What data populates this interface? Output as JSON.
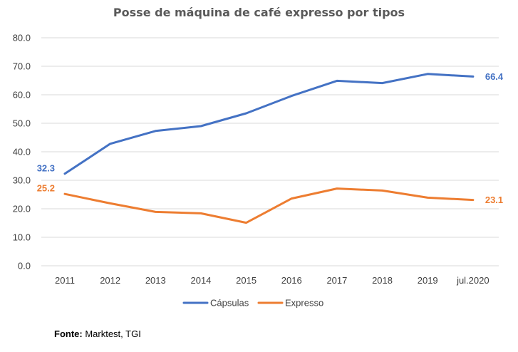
{
  "chart_data": {
    "type": "line",
    "title": "Posse de máquina de café expresso por tipos",
    "xlabel": "",
    "ylabel": "",
    "categories": [
      "2011",
      "2012",
      "2013",
      "2014",
      "2015",
      "2016",
      "2017",
      "2018",
      "2019",
      "jul.2020"
    ],
    "ylim": [
      0,
      80
    ],
    "yticks": [
      "0.0",
      "10.0",
      "20.0",
      "30.0",
      "40.0",
      "50.0",
      "60.0",
      "70.0",
      "80.0"
    ],
    "grid": true,
    "legend_position": "bottom",
    "series": [
      {
        "name": "Cápsulas",
        "color": "#4472C4",
        "values": [
          32.3,
          42.8,
          47.3,
          49.0,
          53.5,
          59.6,
          64.9,
          64.1,
          67.3,
          66.4
        ],
        "end_labels": {
          "first": "32.3",
          "last": "66.4"
        }
      },
      {
        "name": "Expresso",
        "color": "#ED7D31",
        "values": [
          25.2,
          21.9,
          18.9,
          18.4,
          15.1,
          23.6,
          27.1,
          26.4,
          23.9,
          23.1
        ],
        "end_labels": {
          "first": "25.2",
          "last": "23.1"
        }
      }
    ]
  },
  "source": {
    "label": "Fonte:",
    "text": " Marktest, TGI"
  }
}
